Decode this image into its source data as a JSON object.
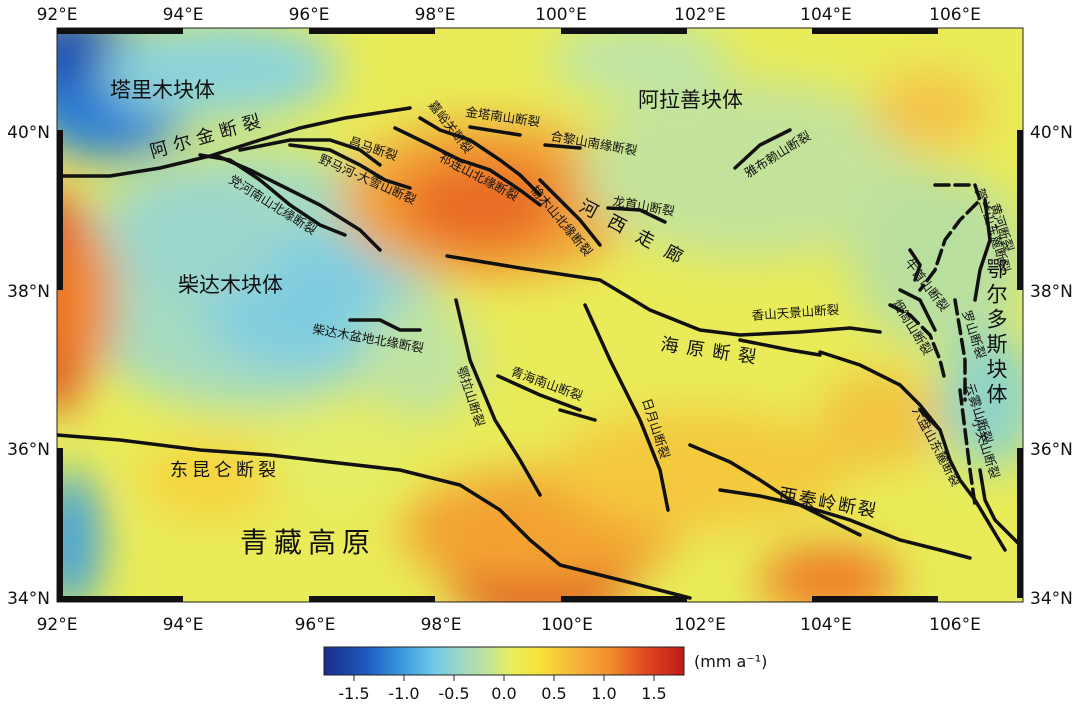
{
  "map": {
    "lon_labels": [
      "92°E",
      "94°E",
      "96°E",
      "98°E",
      "100°E",
      "102°E",
      "104°E",
      "106°E"
    ],
    "lat_labels": [
      "34°N",
      "36°N",
      "38°N",
      "40°N"
    ],
    "regions": {
      "tarim": "塔里木块体",
      "alxa": "阿拉善块体",
      "qaidam": "柴达木块体",
      "ordos": "鄂尔多斯块体",
      "tibet": "青藏高原"
    },
    "faults": {
      "altyn": "阿尔金断裂",
      "kunlun": "东昆仑断裂",
      "haiyuan": "海原断裂",
      "qinling": "西秦岭断裂",
      "hexi": "河西走廊",
      "jiayuguan": "嘉峪关断裂",
      "jintanan": "金塔南山断裂",
      "helishan": "合黎山南缘断裂",
      "changma": "昌马断裂",
      "qilian_n": "祁连山北缘断裂",
      "yumu": "榆木山北缘断裂",
      "longshou": "龙首山断裂",
      "yabulai": "雅布赖山断裂",
      "yema": "野马河-大雪山断裂",
      "danghe": "党河南山北缘断裂",
      "qaidam_n": "柴达木盆地北缘断裂",
      "elashan": "鄂拉山断裂",
      "qinghainanshan": "青海南山断裂",
      "riyue": "日月山断裂",
      "xiangshan": "香山天景山断裂",
      "niushoushan": "牛首山断裂",
      "yantongshan": "烟筒山断裂",
      "luoshan": "罗山断裂",
      "yunwushan": "云雾山断裂",
      "liupanshan": "六盘山东麓断裂",
      "xiaoguanshan": "小关山断裂",
      "helan_e": "贺兰山东麓断裂",
      "yellow_river": "黄河断裂"
    },
    "colorbar": {
      "unit": "(mm a⁻¹)",
      "min": -1.8,
      "max": 1.8,
      "ticks": [
        "-1.5",
        "-1.0",
        "-0.5",
        "0.0",
        "0.5",
        "1.0",
        "1.5"
      ],
      "colors": [
        "#1a2d8c",
        "#1f5bbf",
        "#3b9be0",
        "#73c9e8",
        "#9ed7c4",
        "#bfe3a0",
        "#e7ef5c",
        "#f7e23a",
        "#f6b33a",
        "#f08a2c",
        "#e0441f",
        "#bf1a1a"
      ]
    }
  }
}
